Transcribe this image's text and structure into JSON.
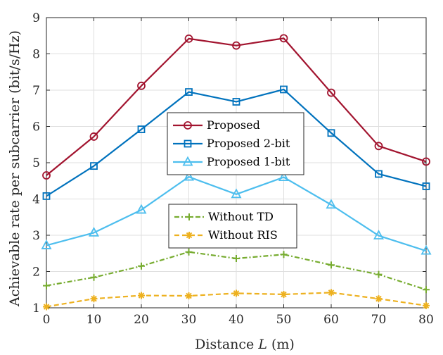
{
  "chart_data": {
    "type": "line",
    "xlabel_prefix": "Distance ",
    "xlabel_var": "L",
    "xlabel_suffix": " (m)",
    "ylabel": "Achievable rate per subcarrier (bit/s/Hz)",
    "xlim": [
      0,
      80
    ],
    "ylim": [
      1,
      9
    ],
    "xticks": [
      0,
      10,
      20,
      30,
      40,
      50,
      60,
      70,
      80
    ],
    "yticks": [
      1,
      2,
      3,
      4,
      5,
      6,
      7,
      8,
      9
    ],
    "grid": true,
    "x": [
      0,
      10,
      20,
      30,
      40,
      50,
      60,
      70,
      80
    ],
    "series": [
      {
        "name": "Proposed",
        "color": "#a2142f",
        "marker": "circle",
        "dash": "solid",
        "values": [
          4.65,
          5.72,
          7.12,
          8.42,
          8.23,
          8.43,
          6.93,
          5.46,
          5.03
        ]
      },
      {
        "name": "Proposed 2-bit",
        "color": "#0072bd",
        "marker": "square",
        "dash": "solid",
        "values": [
          4.08,
          4.91,
          5.92,
          6.95,
          6.68,
          7.02,
          5.82,
          4.69,
          4.35
        ]
      },
      {
        "name": "Proposed 1-bit",
        "color": "#4dbeee",
        "marker": "triangle",
        "dash": "solid",
        "values": [
          2.72,
          3.07,
          3.7,
          4.61,
          4.13,
          4.6,
          3.84,
          2.99,
          2.57
        ]
      },
      {
        "name": "Without TD",
        "color": "#77ac30",
        "marker": "plus",
        "dash": "dashdot",
        "values": [
          1.61,
          1.84,
          2.15,
          2.54,
          2.36,
          2.47,
          2.18,
          1.92,
          1.5
        ]
      },
      {
        "name": "Without RIS",
        "color": "#edb120",
        "marker": "star",
        "dash": "dashed",
        "values": [
          1.03,
          1.25,
          1.34,
          1.33,
          1.4,
          1.37,
          1.42,
          1.25,
          1.06
        ]
      }
    ],
    "legends": [
      {
        "placement": "center",
        "entries": [
          0,
          1,
          2
        ]
      },
      {
        "placement": "lower-center",
        "entries": [
          3,
          4
        ]
      }
    ]
  }
}
